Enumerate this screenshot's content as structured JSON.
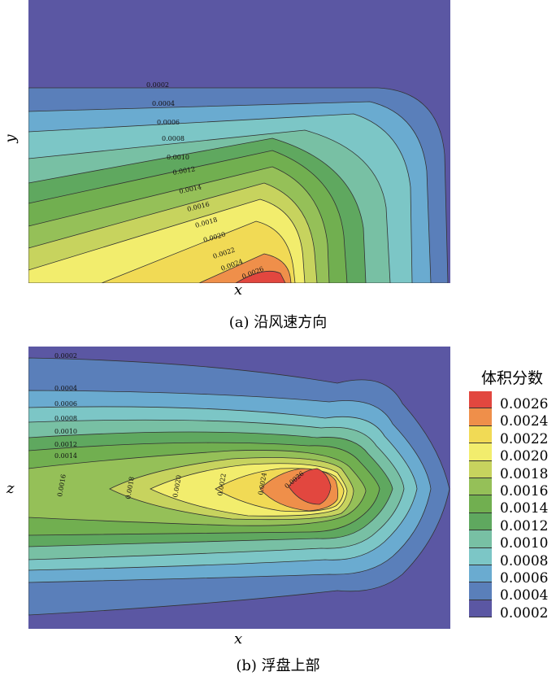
{
  "panel_a": {
    "caption": "(a) 沿风速方向",
    "xlabel": "x",
    "ylabel": "y",
    "contour_labels": [
      "0.0002",
      "0.0004",
      "0.0006",
      "0.0008",
      "0.0010",
      "0.0012",
      "0.0014",
      "0.0016",
      "0.0018",
      "0.0020",
      "0.0022",
      "0.0024",
      "0.0026"
    ]
  },
  "panel_b": {
    "caption": "(b) 浮盘上部",
    "xlabel": "x",
    "ylabel": "z",
    "contour_labels_top": [
      "0.0002",
      "0.0004",
      "0.0006",
      "0.0008",
      "0.0010",
      "0.0012",
      "0.0014"
    ],
    "contour_labels_mid": [
      "0.0016",
      "0.0018",
      "0.0020",
      "0.0022",
      "0.0024",
      "0.0026"
    ]
  },
  "legend": {
    "title": "体积分数",
    "levels": [
      {
        "label": "0.0026",
        "color": "#e2473f"
      },
      {
        "label": "0.0024",
        "color": "#ef8f4a"
      },
      {
        "label": "0.0022",
        "color": "#f1da55"
      },
      {
        "label": "0.0020",
        "color": "#f2ed6d"
      },
      {
        "label": "0.0018",
        "color": "#c7d35e"
      },
      {
        "label": "0.0016",
        "color": "#95c058"
      },
      {
        "label": "0.0014",
        "color": "#71af50"
      },
      {
        "label": "0.0012",
        "color": "#5fa85f"
      },
      {
        "label": "0.0010",
        "color": "#78c0a4"
      },
      {
        "label": "0.0008",
        "color": "#7cc6c6"
      },
      {
        "label": "0.0006",
        "color": "#6aabd0"
      },
      {
        "label": "0.0004",
        "color": "#5a7fba"
      },
      {
        "label": "0.0002",
        "color": "#5b57a3"
      }
    ]
  }
}
